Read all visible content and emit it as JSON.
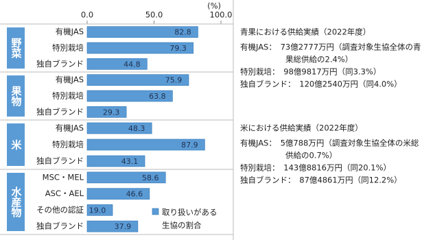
{
  "chart_data": {
    "type": "grouped-hbar",
    "unit": "(%)",
    "color": "#5b9bd5",
    "xlim": [
      0,
      100
    ],
    "xticks": [
      {
        "value": 0,
        "label": "0.0"
      },
      {
        "value": 50,
        "label": "50.0"
      },
      {
        "value": 100,
        "label": "100.0"
      }
    ],
    "groups": [
      {
        "name": "野菜",
        "categories": [
          "有機JAS",
          "特別栽培",
          "独自ブランド"
        ],
        "values": [
          82.8,
          79.3,
          44.8
        ],
        "value_labels": [
          "82.8",
          "79.3",
          "44.8"
        ]
      },
      {
        "name": "果物",
        "categories": [
          "有機JAS",
          "特別栽培",
          "独自ブランド"
        ],
        "values": [
          75.9,
          63.8,
          29.3
        ],
        "value_labels": [
          "75.9",
          "63.8",
          "29.3"
        ]
      },
      {
        "name": "米",
        "categories": [
          "有機JAS",
          "特別栽培",
          "独自ブランド"
        ],
        "values": [
          48.3,
          87.9,
          43.1
        ],
        "value_labels": [
          "48.3",
          "87.9",
          "43.1"
        ]
      },
      {
        "name": "水産物",
        "categories": [
          "MSC・MEL",
          "ASC・AEL",
          "その他の認証",
          "独自ブランド"
        ],
        "values": [
          58.6,
          46.6,
          19.0,
          37.9
        ],
        "value_labels": [
          "58.6",
          "46.6",
          "19.0",
          "37.9"
        ]
      }
    ],
    "legend": [
      "取り扱いがある",
      "生協の割合"
    ]
  },
  "notes": [
    {
      "title": "青果における供給実績（2022年度）",
      "items": [
        [
          "有機JAS：　73億2777万円（調査対象生協全体の青",
          "果総供給の2.4%）"
        ],
        [
          "特別栽培：　98億9817万円（同3.3%）"
        ],
        [
          "独自ブランド：　120億2540万円（同4.0%）"
        ]
      ]
    },
    {
      "title": "米における供給実績（2022年度）",
      "items": [
        [
          "有機JAS：　5億788万円（調査対象生協全体の米総",
          "供給の0.7%）"
        ],
        [
          "特別栽培：　143億8816万円（同20.1%）"
        ],
        [
          "独自ブランド：　87億4861万円（同12.2%）"
        ]
      ]
    }
  ]
}
